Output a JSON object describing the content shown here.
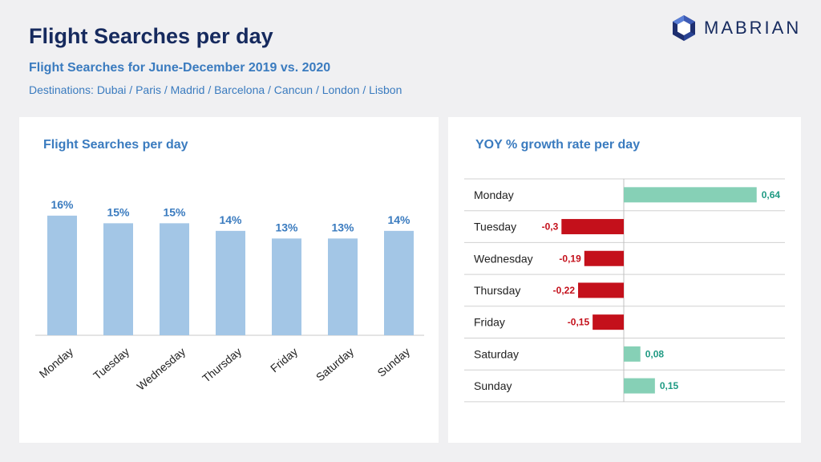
{
  "header": {
    "title": "Flight Searches per day",
    "subtitle": "Flight Searches for June-December 2019 vs. 2020",
    "destinations": "Destinations: Dubai / Paris / Madrid / Barcelona / Cancun / London / Lisbon",
    "logo_text": "MABRIAN"
  },
  "colors": {
    "title": "#162a5e",
    "accent": "#3a7bbf",
    "bar": "#a3c6e6",
    "positive": "#86d0b6",
    "negative": "#c4101b",
    "positive_label": "#1f9a83"
  },
  "chart_data": [
    {
      "type": "bar",
      "title": "Flight Searches per day",
      "categories": [
        "Monday",
        "Tuesday",
        "Wednesday",
        "Thursday",
        "Friday",
        "Saturday",
        "Sunday"
      ],
      "values": [
        16,
        15,
        15,
        14,
        13,
        13,
        14
      ],
      "value_labels": [
        "16%",
        "15%",
        "15%",
        "14%",
        "13%",
        "13%",
        "14%"
      ],
      "unit": "%",
      "ylim": [
        0,
        17
      ],
      "grid": false
    },
    {
      "type": "bar",
      "orientation": "horizontal",
      "title": "YOY % growth rate per day",
      "categories": [
        "Monday",
        "Tuesday",
        "Wednesday",
        "Thursday",
        "Friday",
        "Saturday",
        "Sunday"
      ],
      "values": [
        0.64,
        -0.3,
        -0.19,
        -0.22,
        -0.15,
        0.08,
        0.15
      ],
      "value_labels": [
        "0,64",
        "-0,3",
        "-0,19",
        "-0,22",
        "-0,15",
        "0,08",
        "0,15"
      ],
      "xlim": [
        -0.4,
        0.64
      ],
      "grid": true
    }
  ]
}
